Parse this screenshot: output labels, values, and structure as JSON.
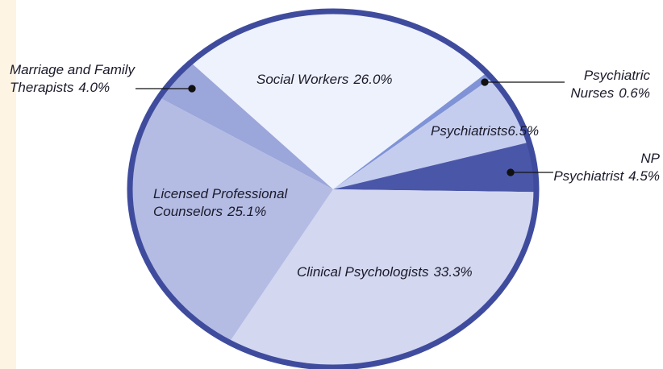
{
  "chart_data": {
    "type": "pie",
    "categories": [
      "Social Workers",
      "Psychiatric Nurses",
      "Psychiatrists",
      "NP Psychiatrist",
      "Clinical Psychologists",
      "Licensed Professional Counselors",
      "Marriage and Family Therapists"
    ],
    "values": [
      26.0,
      0.6,
      6.5,
      4.5,
      33.3,
      25.1,
      4.0
    ],
    "value_labels": [
      "26.0%",
      "0.6%",
      "6.5%",
      "4.5%",
      "33.3%",
      "25.1%",
      "4.0%"
    ],
    "colors": [
      "#eef2fc",
      "#7f93d6",
      "#c5cdef",
      "#4a57a8",
      "#d3d7f0",
      "#b4bce4",
      "#9ba6da"
    ]
  }
}
